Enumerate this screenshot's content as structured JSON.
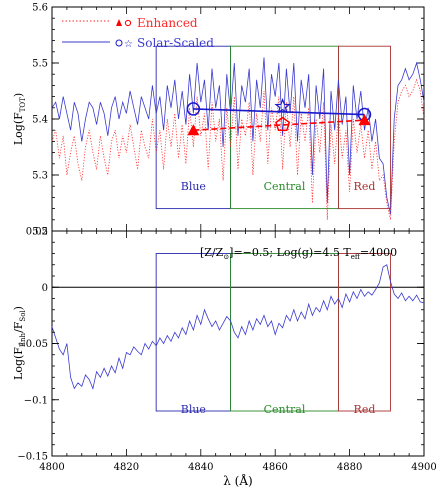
{
  "chart_data": [
    {
      "type": "line",
      "panel": "top",
      "ylabel": "Log(F_TOT)",
      "ylabel_main": "Log(F",
      "ylabel_sub": "TOT",
      "ylabel_close": ")",
      "xlim": [
        4800,
        4900
      ],
      "ylim": [
        5.2,
        5.6
      ],
      "yticks": [
        5.3,
        5.4,
        5.5,
        5.6
      ],
      "ytick_labels": [
        "5.3",
        "5.4",
        "5.5",
        "5.6"
      ],
      "legend_position": "top-left",
      "legend": [
        {
          "name": "Enhanced",
          "color": "#ff2a2a",
          "style": "dotted",
          "markers": "triangle, circle"
        },
        {
          "name": "Solar-Scaled",
          "color": "#3a3ad0",
          "style": "solid",
          "markers": "circle, star"
        }
      ],
      "windows": [
        {
          "label": "Blue",
          "color": "#2b2bb0",
          "x_range": [
            4828,
            4848
          ]
        },
        {
          "label": "Central",
          "color": "#2a8a2a",
          "x_range": [
            4848,
            4877
          ]
        },
        {
          "label": "Red",
          "color": "#a83232",
          "x_range": [
            4877,
            4891
          ]
        }
      ],
      "series": [
        {
          "name": "Solar-Scaled",
          "color": "#3a3ad0",
          "style": "solid",
          "x": [
            4800,
            4801,
            4802,
            4803,
            4804,
            4805,
            4806,
            4807,
            4808,
            4809,
            4810,
            4811,
            4812,
            4813,
            4814,
            4815,
            4816,
            4817,
            4818,
            4819,
            4820,
            4821,
            4822,
            4823,
            4824,
            4825,
            4826,
            4827,
            4828,
            4829,
            4830,
            4831,
            4832,
            4833,
            4834,
            4835,
            4836,
            4837,
            4838,
            4839,
            4840,
            4841,
            4842,
            4843,
            4844,
            4845,
            4846,
            4847,
            4848,
            4849,
            4850,
            4851,
            4852,
            4853,
            4854,
            4855,
            4856,
            4857,
            4858,
            4859,
            4860,
            4861,
            4862,
            4863,
            4864,
            4865,
            4866,
            4867,
            4868,
            4869,
            4870,
            4871,
            4872,
            4873,
            4874,
            4875,
            4876,
            4877,
            4878,
            4879,
            4880,
            4881,
            4882,
            4883,
            4884,
            4885,
            4886,
            4887,
            4888,
            4889,
            4890,
            4891,
            4892,
            4893,
            4894,
            4895,
            4896,
            4897,
            4898,
            4899,
            4900
          ],
          "y": [
            5.42,
            5.43,
            5.4,
            5.44,
            5.41,
            5.38,
            5.43,
            5.41,
            5.36,
            5.4,
            5.43,
            5.42,
            5.39,
            5.43,
            5.41,
            5.37,
            5.42,
            5.44,
            5.4,
            5.43,
            5.41,
            5.45,
            5.42,
            5.39,
            5.44,
            5.42,
            5.4,
            5.46,
            5.41,
            5.44,
            5.38,
            5.46,
            5.42,
            5.47,
            5.4,
            5.45,
            5.39,
            5.48,
            5.41,
            5.5,
            5.43,
            5.47,
            5.38,
            5.49,
            5.42,
            5.46,
            5.35,
            5.48,
            5.41,
            5.5,
            5.37,
            5.46,
            5.43,
            5.49,
            5.36,
            5.47,
            5.42,
            5.51,
            5.38,
            5.48,
            5.44,
            5.5,
            5.37,
            5.49,
            5.41,
            5.5,
            5.36,
            5.47,
            5.42,
            5.48,
            5.3,
            5.46,
            5.4,
            5.49,
            5.25,
            5.45,
            5.38,
            5.47,
            5.39,
            5.44,
            5.3,
            5.46,
            5.4,
            5.45,
            5.38,
            5.42,
            5.36,
            5.4,
            5.33,
            5.32,
            5.26,
            5.23,
            5.4,
            5.46,
            5.47,
            5.49,
            5.47,
            5.48,
            5.5,
            5.47,
            5.43
          ]
        },
        {
          "name": "Enhanced",
          "color": "#ff2a2a",
          "style": "dotted",
          "x": [
            4800,
            4801,
            4802,
            4803,
            4804,
            4805,
            4806,
            4807,
            4808,
            4809,
            4810,
            4811,
            4812,
            4813,
            4814,
            4815,
            4816,
            4817,
            4818,
            4819,
            4820,
            4821,
            4822,
            4823,
            4824,
            4825,
            4826,
            4827,
            4828,
            4829,
            4830,
            4831,
            4832,
            4833,
            4834,
            4835,
            4836,
            4837,
            4838,
            4839,
            4840,
            4841,
            4842,
            4843,
            4844,
            4845,
            4846,
            4847,
            4848,
            4849,
            4850,
            4851,
            4852,
            4853,
            4854,
            4855,
            4856,
            4857,
            4858,
            4859,
            4860,
            4861,
            4862,
            4863,
            4864,
            4865,
            4866,
            4867,
            4868,
            4869,
            4870,
            4871,
            4872,
            4873,
            4874,
            4875,
            4876,
            4877,
            4878,
            4879,
            4880,
            4881,
            4882,
            4883,
            4884,
            4885,
            4886,
            4887,
            4888,
            4889,
            4890,
            4891,
            4892,
            4893,
            4894,
            4895,
            4896,
            4897,
            4898,
            4899,
            4900
          ],
          "y": [
            5.36,
            5.38,
            5.33,
            5.37,
            5.3,
            5.34,
            5.37,
            5.32,
            5.29,
            5.35,
            5.38,
            5.34,
            5.31,
            5.37,
            5.33,
            5.3,
            5.36,
            5.38,
            5.33,
            5.37,
            5.34,
            5.39,
            5.35,
            5.31,
            5.38,
            5.35,
            5.33,
            5.4,
            5.34,
            5.38,
            5.31,
            5.4,
            5.35,
            5.41,
            5.33,
            5.39,
            5.32,
            5.42,
            5.35,
            5.44,
            5.37,
            5.41,
            5.31,
            5.43,
            5.36,
            5.4,
            5.29,
            5.42,
            5.35,
            5.44,
            5.31,
            5.4,
            5.37,
            5.43,
            5.3,
            5.41,
            5.36,
            5.45,
            5.32,
            5.42,
            5.38,
            5.44,
            5.31,
            5.43,
            5.35,
            5.44,
            5.3,
            5.41,
            5.36,
            5.42,
            5.25,
            5.4,
            5.34,
            5.43,
            5.22,
            5.39,
            5.32,
            5.41,
            5.33,
            5.38,
            5.27,
            5.4,
            5.34,
            5.39,
            5.33,
            5.38,
            5.31,
            5.36,
            5.29,
            5.3,
            5.25,
            5.22,
            5.36,
            5.43,
            5.45,
            5.46,
            5.44,
            5.45,
            5.47,
            5.45,
            5.4
          ]
        }
      ],
      "window_points": [
        {
          "series": "Solar-Scaled",
          "marker": "circle",
          "x": 4838,
          "y": 5.418,
          "color": "#1a1acc"
        },
        {
          "series": "Solar-Scaled",
          "marker": "circle",
          "x": 4884,
          "y": 5.408,
          "color": "#1a1acc"
        },
        {
          "series": "Solar-Scaled",
          "marker": "star",
          "x": 4862,
          "y": 5.422,
          "color": "#1a1acc"
        },
        {
          "series": "Enhanced",
          "marker": "triangle",
          "x": 4838,
          "y": 5.38,
          "color": "#ff0000"
        },
        {
          "series": "Enhanced",
          "marker": "triangle",
          "x": 4884,
          "y": 5.398,
          "color": "#ff0000"
        },
        {
          "series": "Enhanced",
          "marker": "pentagon",
          "x": 4862,
          "y": 5.39,
          "color": "#ff0000"
        }
      ]
    },
    {
      "type": "line",
      "panel": "bottom",
      "ylabel": "Log(F_Enh/F_Sol)",
      "ylabel_main": "Log(F",
      "ylabel_sub1": "Enh",
      "ylabel_mid": "/F",
      "ylabel_sub2": "Sol",
      "ylabel_close": ")",
      "xlabel": "λ (Å)",
      "xlim": [
        4800,
        4900
      ],
      "ylim": [
        -0.15,
        0.05
      ],
      "xticks": [
        4800,
        4820,
        4840,
        4860,
        4880,
        4900
      ],
      "xtick_labels": [
        "4800",
        "4820",
        "4840",
        "4860",
        "4880",
        "4900"
      ],
      "yticks": [
        -0.15,
        -0.1,
        -0.05,
        0,
        0.05
      ],
      "ytick_labels": [
        "−0.15",
        "−0.1",
        "−0.05",
        "0",
        "0.05"
      ],
      "top_tick_label": "5.2",
      "annotation": {
        "p1": "[Z/Z",
        "p1sub": "⊙",
        "p2": "]=−0.5; Log(g)=4.5  T",
        "p2sub": "eff",
        "p3": "=4000"
      },
      "windows": [
        {
          "label": "Blue",
          "color": "#2b2bb0",
          "x_range": [
            4828,
            4848
          ]
        },
        {
          "label": "Central",
          "color": "#2a8a2a",
          "x_range": [
            4848,
            4877
          ]
        },
        {
          "label": "Red",
          "color": "#a83232",
          "x_range": [
            4877,
            4891
          ]
        }
      ],
      "series": [
        {
          "name": "ratio",
          "color": "#3a3ad0",
          "style": "solid",
          "x": [
            4800,
            4801,
            4802,
            4803,
            4804,
            4805,
            4806,
            4807,
            4808,
            4809,
            4810,
            4811,
            4812,
            4813,
            4814,
            4815,
            4816,
            4817,
            4818,
            4819,
            4820,
            4821,
            4822,
            4823,
            4824,
            4825,
            4826,
            4827,
            4828,
            4829,
            4830,
            4831,
            4832,
            4833,
            4834,
            4835,
            4836,
            4837,
            4838,
            4839,
            4840,
            4841,
            4842,
            4843,
            4844,
            4845,
            4846,
            4847,
            4848,
            4849,
            4850,
            4851,
            4852,
            4853,
            4854,
            4855,
            4856,
            4857,
            4858,
            4859,
            4860,
            4861,
            4862,
            4863,
            4864,
            4865,
            4866,
            4867,
            4868,
            4869,
            4870,
            4871,
            4872,
            4873,
            4874,
            4875,
            4876,
            4877,
            4878,
            4879,
            4880,
            4881,
            4882,
            4883,
            4884,
            4885,
            4886,
            4887,
            4888,
            4889,
            4890,
            4891,
            4892,
            4893,
            4894,
            4895,
            4896,
            4897,
            4898,
            4899,
            4900
          ],
          "y": [
            -0.035,
            -0.045,
            -0.055,
            -0.06,
            -0.05,
            -0.08,
            -0.09,
            -0.085,
            -0.088,
            -0.078,
            -0.082,
            -0.09,
            -0.075,
            -0.08,
            -0.072,
            -0.079,
            -0.07,
            -0.076,
            -0.063,
            -0.072,
            -0.058,
            -0.06,
            -0.053,
            -0.057,
            -0.06,
            -0.05,
            -0.055,
            -0.048,
            -0.052,
            -0.045,
            -0.05,
            -0.043,
            -0.048,
            -0.04,
            -0.045,
            -0.036,
            -0.042,
            -0.03,
            -0.038,
            -0.025,
            -0.033,
            -0.02,
            -0.028,
            -0.035,
            -0.03,
            -0.038,
            -0.032,
            -0.026,
            -0.03,
            -0.04,
            -0.045,
            -0.035,
            -0.042,
            -0.03,
            -0.038,
            -0.028,
            -0.033,
            -0.025,
            -0.035,
            -0.03,
            -0.042,
            -0.032,
            -0.036,
            -0.025,
            -0.03,
            -0.02,
            -0.03,
            -0.022,
            -0.028,
            -0.015,
            -0.025,
            -0.018,
            -0.022,
            -0.012,
            -0.02,
            -0.008,
            -0.015,
            -0.01,
            -0.018,
            -0.006,
            -0.013,
            -0.004,
            -0.01,
            -0.002,
            -0.008,
            -0.004,
            -0.007,
            -0.002,
            0.004,
            0.018,
            0.02,
            0.005,
            -0.006,
            -0.01,
            -0.005,
            -0.012,
            -0.008,
            -0.012,
            -0.007,
            -0.013,
            -0.014
          ]
        }
      ]
    }
  ]
}
